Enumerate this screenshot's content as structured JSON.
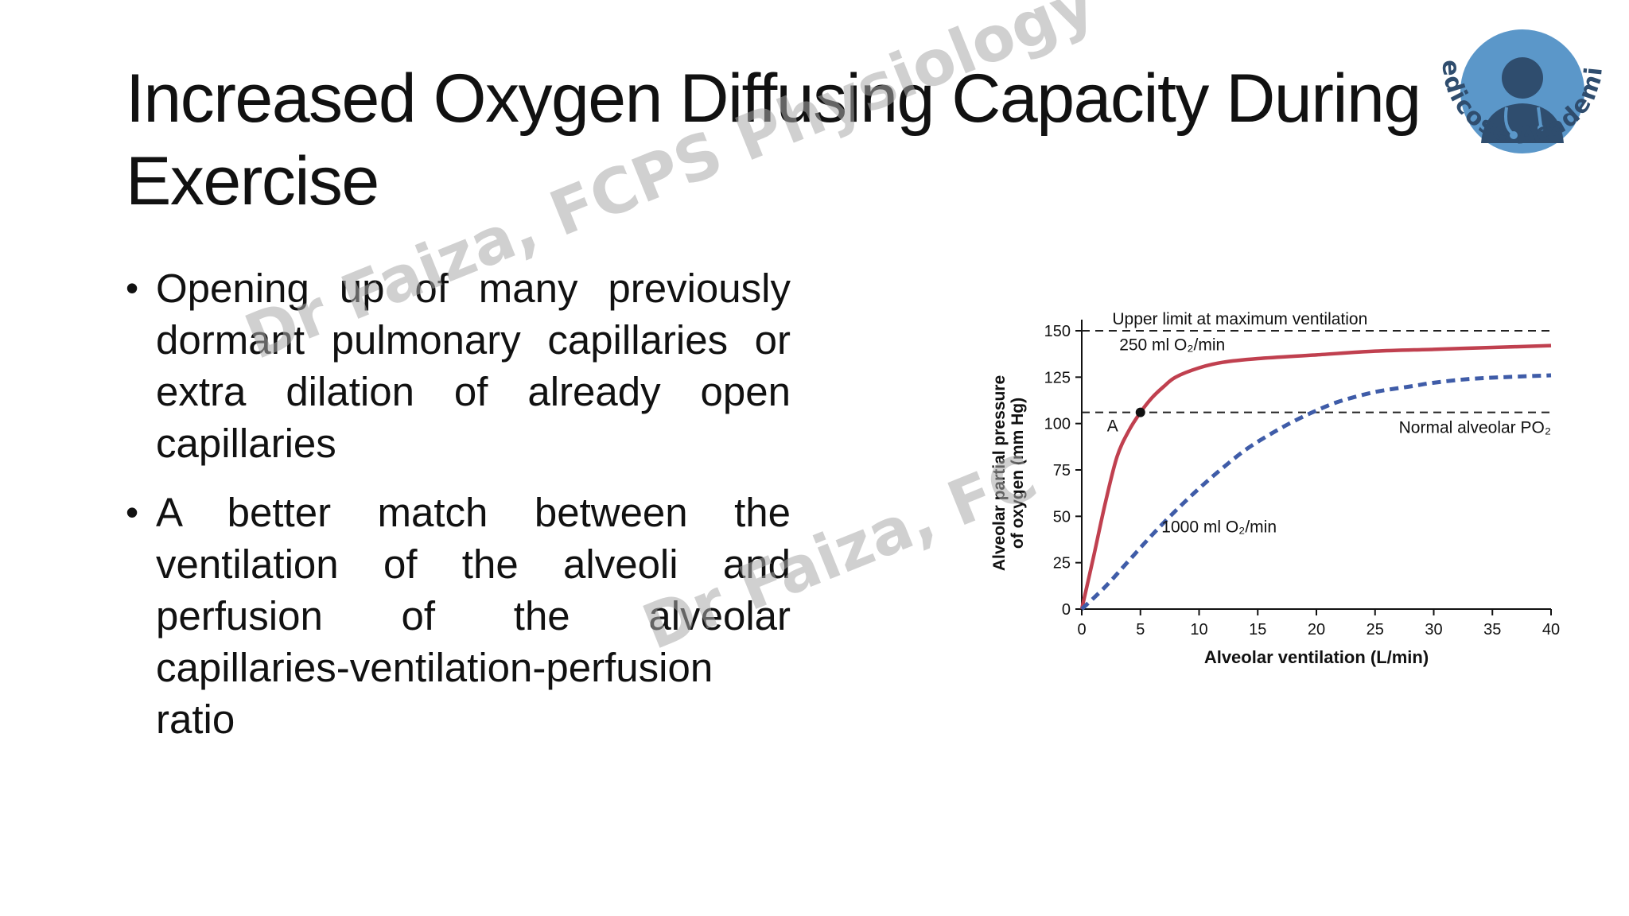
{
  "slide": {
    "title": "Increased Oxygen Diffusing Capacity During Exercise",
    "bullets": [
      "Opening up of many previously dormant pulmonary capillaries or extra dilation of already open capillaries",
      "A better match between the ventilation of the alveoli and perfusion of the alveolar capillaries-ventilation-perfusion ratio"
    ],
    "bullet_symbol": "•"
  },
  "logo": {
    "text": "Medicose Academics",
    "icon": "doctor-avatar-icon",
    "ring_color": "#5b97c9",
    "figure_color": "#2f4d6e"
  },
  "watermarks": [
    "Dr Faiza, FCPS Physiology",
    "Dr Faiza, FC"
  ],
  "chart_data": {
    "type": "line",
    "xlabel": "Alveolar ventilation (L/min)",
    "ylabel_line1": "Alveolar partial pressure",
    "ylabel_line2": "of oxygen (mm Hg)",
    "xlim": [
      0,
      40
    ],
    "ylim": [
      0,
      150
    ],
    "xticks": [
      0,
      5,
      10,
      15,
      20,
      25,
      30,
      35,
      40
    ],
    "yticks": [
      0,
      25,
      50,
      75,
      100,
      125,
      150
    ],
    "grid": false,
    "reference_lines": [
      {
        "y": 150,
        "label": "Upper limit at maximum ventilation",
        "style": "dashed"
      },
      {
        "y": 106,
        "label": "Normal alveolar PO₂",
        "style": "dashed"
      }
    ],
    "series": [
      {
        "name": "250 ml O₂/min",
        "color": "#c0404f",
        "style": "solid",
        "x": [
          0,
          1,
          2,
          3,
          4,
          5,
          6,
          7,
          8,
          10,
          12,
          15,
          20,
          25,
          30,
          35,
          40
        ],
        "y": [
          0,
          28,
          57,
          82,
          96,
          106,
          114,
          120,
          125,
          130,
          133,
          135,
          137,
          139,
          140,
          141,
          142
        ]
      },
      {
        "name": "1000 ml O₂/min",
        "color": "#3f5ca8",
        "style": "dashed",
        "x": [
          0,
          2,
          4,
          6,
          8,
          10,
          12,
          14,
          16,
          18,
          20,
          22,
          25,
          28,
          30,
          33,
          36,
          40
        ],
        "y": [
          0,
          12,
          26,
          40,
          53,
          65,
          76,
          86,
          94,
          101,
          107,
          112,
          117,
          120,
          122,
          124,
          125,
          126
        ]
      }
    ],
    "marker": {
      "label": "A",
      "x": 5,
      "y": 106
    },
    "series_label_positions": {
      "250 ml O₂/min": "upper-left",
      "1000 ml O₂/min": "center"
    }
  }
}
